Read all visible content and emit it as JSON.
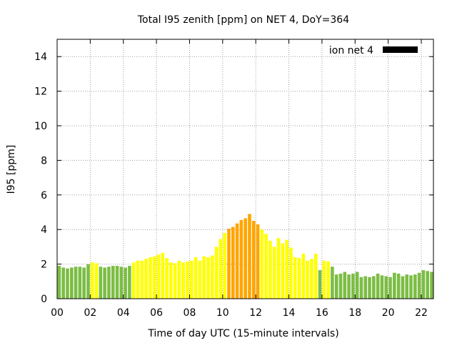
{
  "chart_data": {
    "type": "bar",
    "title": "Total I95 zenith [ppm] on NET 4, DoY=364",
    "xlabel": "Time of day UTC (15-minute intervals)",
    "ylabel": "I95 [ppm]",
    "ylim": [
      0,
      15
    ],
    "xlim": [
      0,
      22.75
    ],
    "grid": true,
    "legend": {
      "label": "ion net 4",
      "placement": "top-right"
    },
    "y_ticks": [
      "0",
      "2",
      "4",
      "6",
      "8",
      "10",
      "12",
      "14"
    ],
    "x_ticks": [
      "00",
      "02",
      "04",
      "06",
      "08",
      "10",
      "12",
      "14",
      "16",
      "18",
      "20",
      "22"
    ],
    "colors": {
      "green": "#7cbd45",
      "yellow": "#ffff00",
      "orange": "#ffa500"
    },
    "bar_interval_hours": 0.25,
    "values": [
      1.9,
      1.8,
      1.75,
      1.8,
      1.85,
      1.85,
      1.8,
      2.0,
      2.1,
      2.05,
      1.85,
      1.8,
      1.85,
      1.9,
      1.9,
      1.85,
      1.8,
      1.9,
      2.1,
      2.2,
      2.2,
      2.3,
      2.4,
      2.45,
      2.55,
      2.65,
      2.35,
      2.1,
      2.05,
      2.2,
      2.1,
      2.15,
      2.2,
      2.4,
      2.2,
      2.45,
      2.4,
      2.5,
      3.0,
      3.45,
      3.8,
      4.05,
      4.15,
      4.35,
      4.55,
      4.65,
      4.9,
      4.5,
      4.3,
      4.0,
      3.75,
      3.35,
      3.0,
      3.5,
      3.2,
      3.4,
      2.95,
      2.4,
      2.35,
      2.6,
      2.2,
      2.3,
      2.6,
      1.65,
      2.2,
      2.15,
      1.85,
      1.4,
      1.45,
      1.55,
      1.4,
      1.45,
      1.55,
      1.25,
      1.3,
      1.25,
      1.3,
      1.45,
      1.35,
      1.3,
      1.25,
      1.5,
      1.45,
      1.3,
      1.4,
      1.35,
      1.4,
      1.5,
      1.65,
      1.6,
      1.55
    ],
    "bar_colors": [
      "green",
      "green",
      "green",
      "green",
      "green",
      "green",
      "green",
      "green",
      "yellow",
      "yellow",
      "green",
      "green",
      "green",
      "green",
      "green",
      "green",
      "green",
      "green",
      "yellow",
      "yellow",
      "yellow",
      "yellow",
      "yellow",
      "yellow",
      "yellow",
      "yellow",
      "yellow",
      "yellow",
      "yellow",
      "yellow",
      "yellow",
      "yellow",
      "yellow",
      "yellow",
      "yellow",
      "yellow",
      "yellow",
      "yellow",
      "yellow",
      "yellow",
      "yellow",
      "orange",
      "orange",
      "orange",
      "orange",
      "orange",
      "orange",
      "orange",
      "orange",
      "yellow",
      "yellow",
      "yellow",
      "yellow",
      "yellow",
      "yellow",
      "yellow",
      "yellow",
      "yellow",
      "yellow",
      "yellow",
      "yellow",
      "yellow",
      "yellow",
      "green",
      "yellow",
      "yellow",
      "green",
      "green",
      "green",
      "green",
      "green",
      "green",
      "green",
      "green",
      "green",
      "green",
      "green",
      "green",
      "green",
      "green",
      "green",
      "green",
      "green",
      "green",
      "green",
      "green",
      "green",
      "green",
      "green",
      "green",
      "green"
    ]
  }
}
